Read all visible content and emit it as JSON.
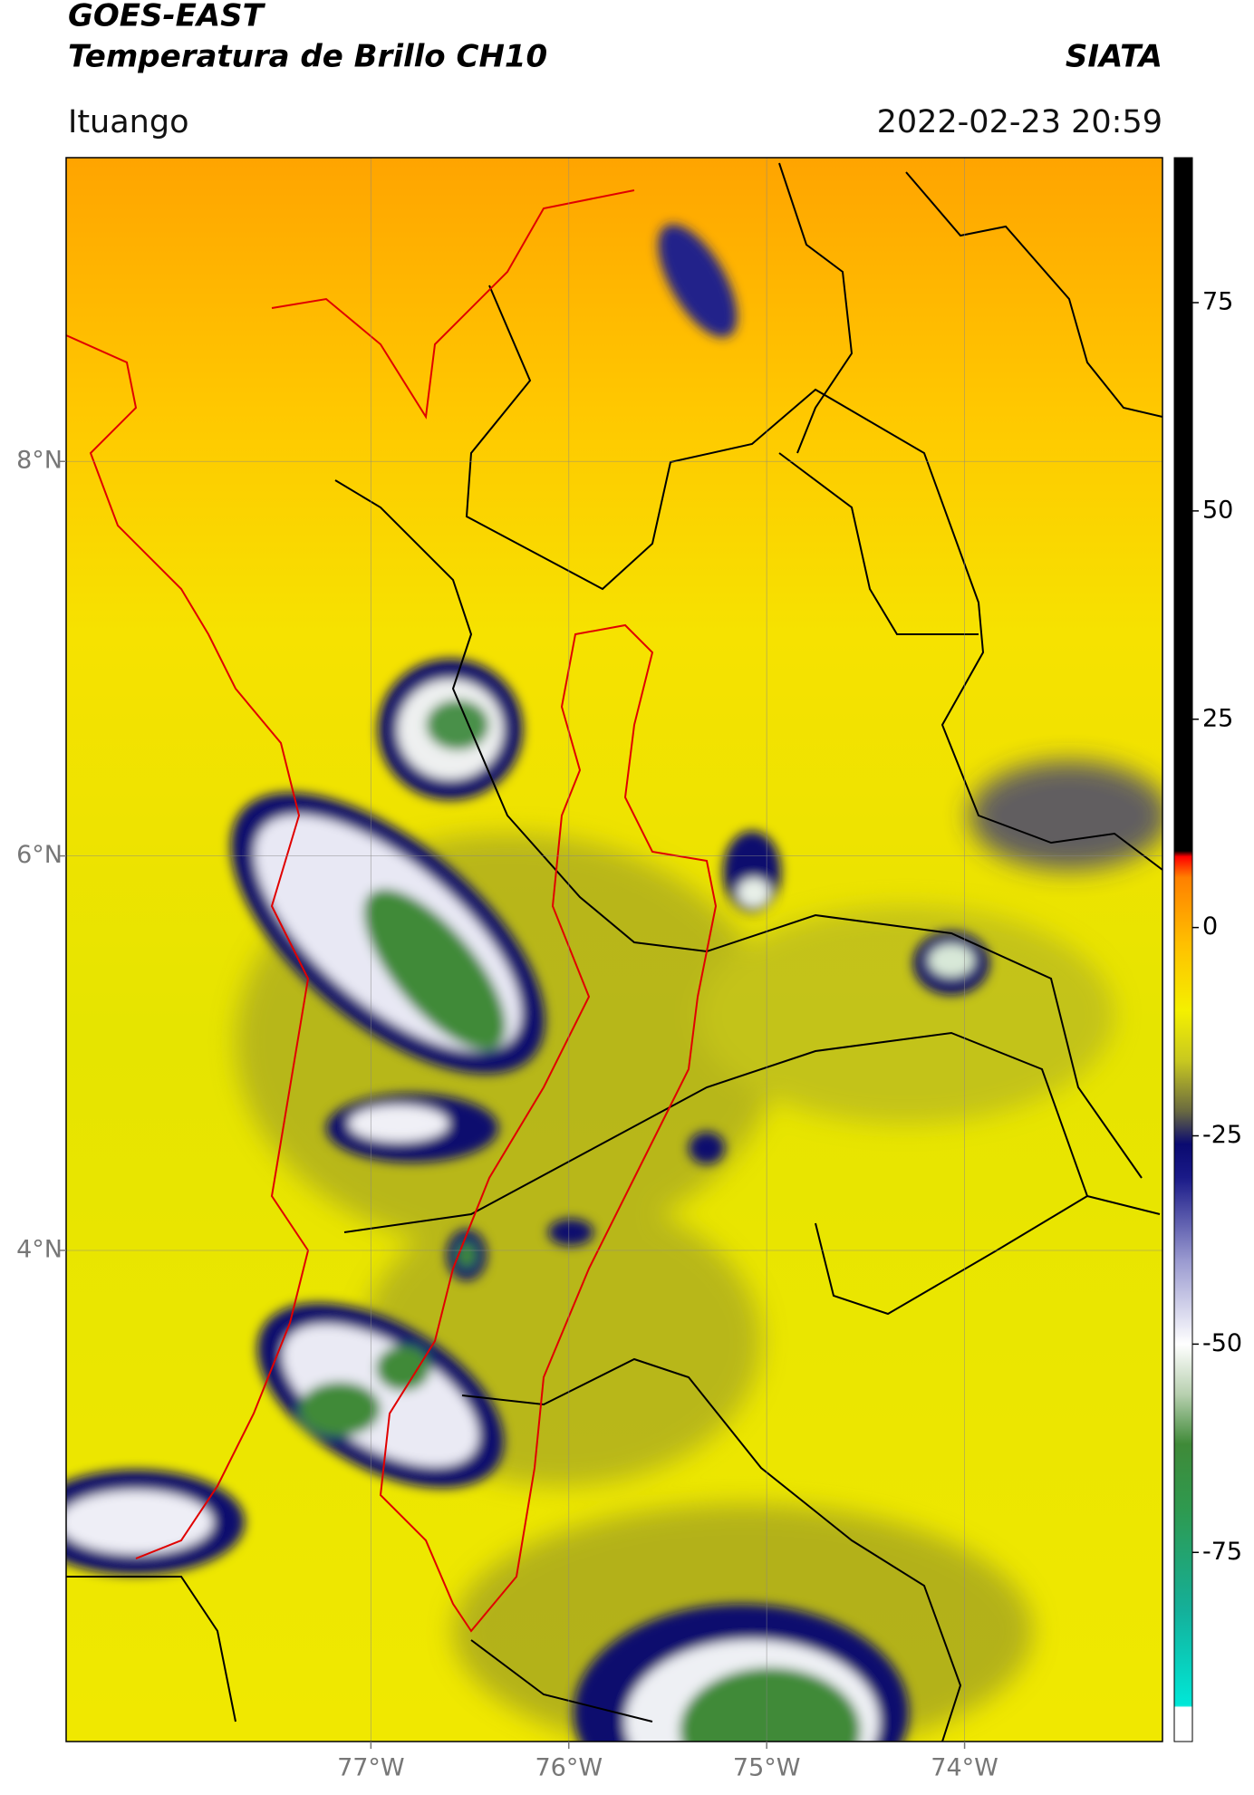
{
  "chart_data": {
    "type": "map",
    "title": "GOES-EAST",
    "subtitle": "Temperatura de Brillo CH10",
    "source": "SIATA",
    "location": "Ituango",
    "datetime": "2022-02-23 20:59",
    "xlim": [
      -78.54,
      -73.0
    ],
    "ylim": [
      1.51,
      9.54
    ],
    "xticks": [
      {
        "value": -77,
        "label": "77°W"
      },
      {
        "value": -76,
        "label": "76°W"
      },
      {
        "value": -75,
        "label": "75°W"
      },
      {
        "value": -74,
        "label": "74°W"
      }
    ],
    "yticks": [
      {
        "value": 4,
        "label": "4°N"
      },
      {
        "value": 6,
        "label": "6°N"
      },
      {
        "value": 8,
        "label": "8°N"
      }
    ],
    "grid": true,
    "colorbar": {
      "lim": [
        -97.7,
        92.4
      ],
      "ticks": [
        -75,
        -50,
        -25,
        0,
        25,
        50,
        75
      ],
      "stops": [
        {
          "value": -97.7,
          "color": "#ffffff"
        },
        {
          "value": -93.6,
          "color": "#ffffff"
        },
        {
          "value": -93.4,
          "color": "#00e8d8"
        },
        {
          "value": -82,
          "color": "#14b09a"
        },
        {
          "value": -70,
          "color": "#2e9a50"
        },
        {
          "value": -62,
          "color": "#3f8a38"
        },
        {
          "value": -56,
          "color": "#b8d0b0"
        },
        {
          "value": -50,
          "color": "#ffffff"
        },
        {
          "value": -40,
          "color": "#9a9ad0"
        },
        {
          "value": -30,
          "color": "#1a1a88"
        },
        {
          "value": -26,
          "color": "#0a0a70"
        },
        {
          "value": -22,
          "color": "#6a6a40"
        },
        {
          "value": -16,
          "color": "#c8c820"
        },
        {
          "value": -10,
          "color": "#f4f000"
        },
        {
          "value": -2,
          "color": "#ffc000"
        },
        {
          "value": 6,
          "color": "#ff8000"
        },
        {
          "value": 8.5,
          "color": "#ff0000"
        },
        {
          "value": 9.2,
          "color": "#000000"
        },
        {
          "value": 92.4,
          "color": "#000000"
        }
      ]
    }
  }
}
